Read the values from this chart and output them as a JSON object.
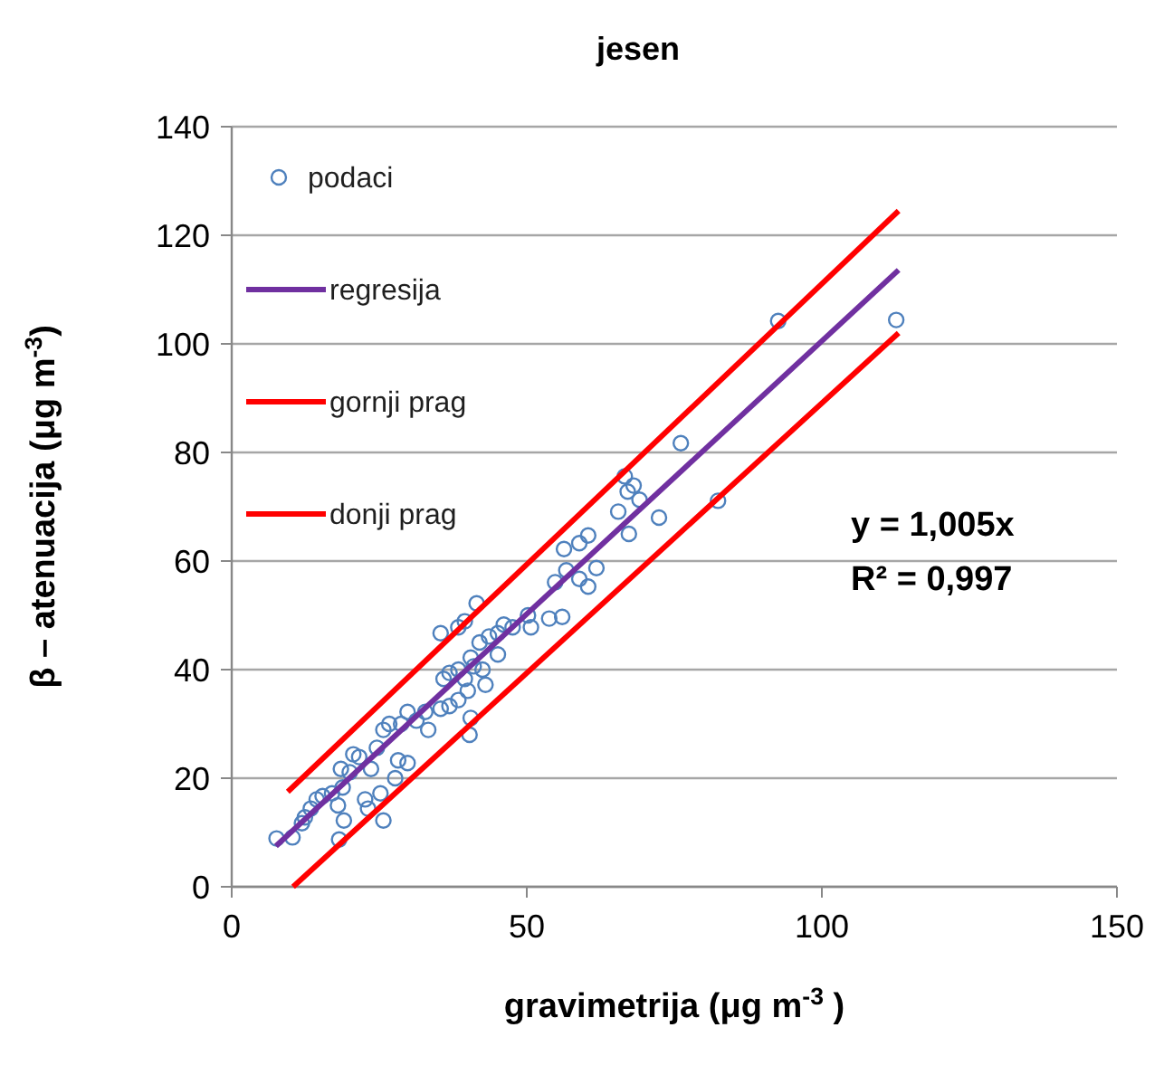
{
  "chart_data": {
    "type": "scatter",
    "title": "jesen",
    "xlabel": "gravimetrija (μg m$^{-3}$ )",
    "ylabel": "β – atenuacija (μg m$^{-3}$)",
    "xlim": [
      0,
      150
    ],
    "xticks": [
      0,
      50,
      100,
      150
    ],
    "ylim": [
      0,
      140
    ],
    "yticks": [
      0,
      20,
      40,
      60,
      80,
      100,
      120,
      140
    ],
    "grid": "y",
    "legend": "top left",
    "annotations": [
      "y = 1,005x",
      "R² = 0,997"
    ],
    "series": [
      {
        "name": "podaci",
        "marker": "circle",
        "color": "#4f81bd",
        "x": [
          7.6,
          10.3,
          11.9,
          12.4,
          13.4,
          14.4,
          15.4,
          17.0,
          18.0,
          18.2,
          19.0,
          18.8,
          20.0,
          20.6,
          21.6,
          18.5,
          22.6,
          23.1,
          25.2,
          25.7,
          23.6,
          24.6,
          25.7,
          26.7,
          28.2,
          27.7,
          29.8,
          29.8,
          28.7,
          31.3,
          32.8,
          33.3,
          35.4,
          36.9,
          35.9,
          36.9,
          38.4,
          39.5,
          40.0,
          38.4,
          40.5,
          40.3,
          41.0,
          42.5,
          43.0,
          40.5,
          42.0,
          35.4,
          38.4,
          39.5,
          41.5,
          43.6,
          45.1,
          46.1,
          45.1,
          47.6,
          50.2,
          50.7,
          53.8,
          54.8,
          92.6,
          112.6,
          76.1,
          82.4,
          66.6,
          68.1,
          67.1,
          69.1,
          65.5,
          72.4,
          67.3,
          60.4,
          58.9,
          56.3,
          61.8,
          56.7,
          58.9,
          60.4,
          56.0
        ],
        "values": [
          8.9,
          9.1,
          11.7,
          12.8,
          14.4,
          16.1,
          16.7,
          17.2,
          15,
          8.7,
          12.2,
          18.3,
          21.1,
          24.4,
          23.9,
          21.7,
          16.1,
          14.4,
          17.2,
          12.2,
          21.7,
          25.6,
          28.9,
          30,
          23.3,
          20,
          22.8,
          32.2,
          30,
          30.6,
          32.2,
          28.9,
          32.8,
          33.3,
          38.3,
          39.4,
          40,
          38.3,
          36.1,
          34.4,
          31.1,
          28,
          40.6,
          40,
          37.2,
          42.2,
          45,
          46.7,
          47.8,
          48.9,
          52.2,
          46.1,
          46.7,
          48.3,
          42.8,
          47.8,
          50,
          47.8,
          49.4,
          56.1,
          104.2,
          104.4,
          81.7,
          71.1,
          75.6,
          73.9,
          72.8,
          71.3,
          69.1,
          68,
          65,
          64.7,
          63.3,
          62.2,
          58.7,
          58.3,
          56.7,
          55.3,
          49.7
        ]
      },
      {
        "name": "regresija",
        "type": "line",
        "color": "#7030a0",
        "x": [
          7.5,
          113
        ],
        "values": [
          7.5,
          113.6
        ]
      },
      {
        "name": "gornji prag",
        "type": "line",
        "color": "#ff0000",
        "x": [
          9.5,
          113
        ],
        "values": [
          17.5,
          124.5
        ]
      },
      {
        "name": "donji prag",
        "type": "line",
        "color": "#ff0000",
        "x": [
          10.4,
          113
        ],
        "values": [
          0,
          102
        ]
      }
    ]
  }
}
